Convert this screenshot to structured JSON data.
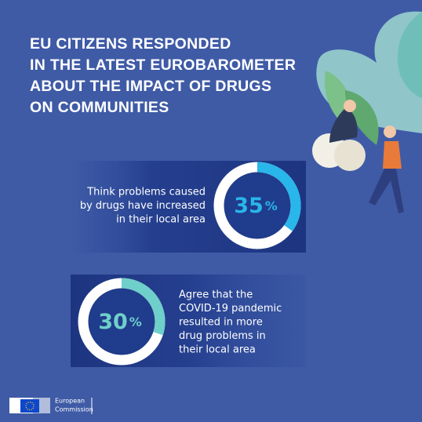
{
  "title": {
    "lines": [
      "EU CITIZENS RESPONDED",
      "IN THE LATEST EUROBAROMETER",
      "ABOUT THE IMPACT OF DRUGS",
      "ON COMMUNITIES"
    ]
  },
  "stats": [
    {
      "value": 35,
      "unit": "%",
      "color": "#29b6ea",
      "text": [
        "Think problems caused",
        "by drugs have increased",
        "in their local area"
      ]
    },
    {
      "value": 30,
      "unit": "%",
      "color": "#6fcfca",
      "text": [
        "Agree that the",
        "COVID-19 pandemic",
        "resulted in more",
        "drug problems in",
        "their local area"
      ]
    }
  ],
  "logo": {
    "lines": [
      "European",
      "Commission"
    ]
  }
}
